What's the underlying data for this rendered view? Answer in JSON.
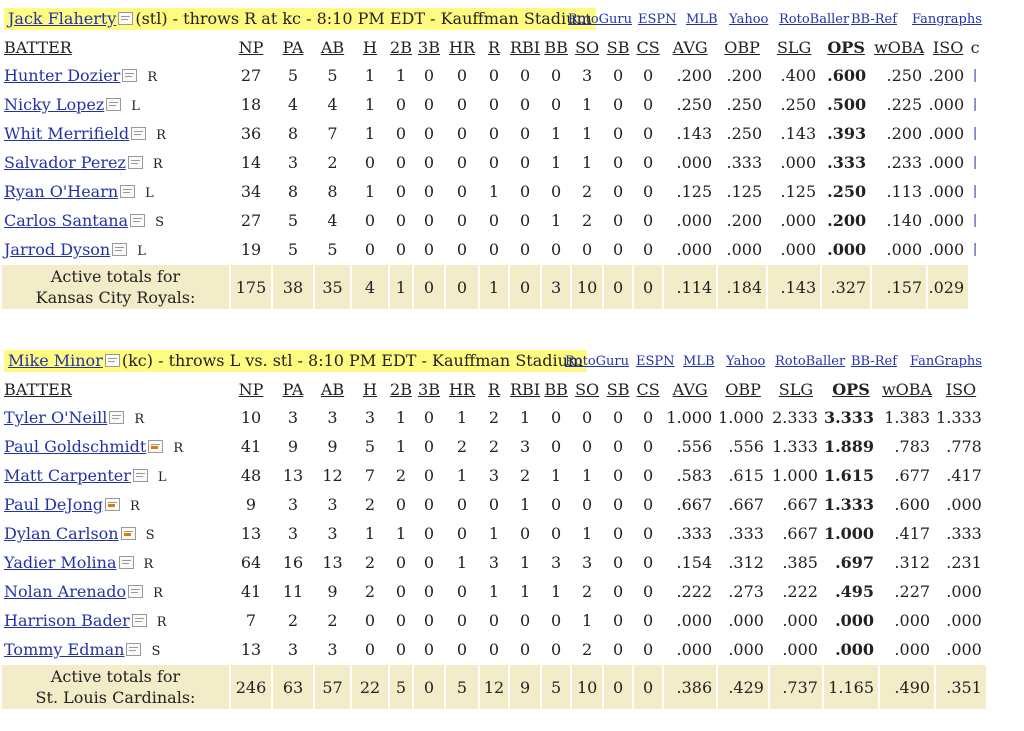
{
  "columns": [
    "BATTER",
    "NP",
    "PA",
    "AB",
    "H",
    "2B",
    "3B",
    "HR",
    "R",
    "RBI",
    "BB",
    "SO",
    "SB",
    "CS",
    "AVG",
    "OBP",
    "SLG",
    "OPS",
    "wOBA",
    "ISO"
  ],
  "games": [
    {
      "pitcher": "Jack Flaherty",
      "info": "(stl) - throws R at kc - 8:10 PM EDT - Kauffman Stadium",
      "links": [
        "RotoGuru",
        "ESPN",
        "MLB",
        "Yahoo",
        "RotoBaller",
        "BB-Ref",
        "Fangraphs"
      ],
      "extra_col": "c",
      "rows": [
        {
          "name": "Hunter Dozier",
          "hand": "R",
          "note": false,
          "stats": [
            "27",
            "5",
            "5",
            "1",
            "1",
            "0",
            "0",
            "0",
            "0",
            "0",
            "3",
            "0",
            "0",
            ".200",
            ".200",
            ".400",
            ".600",
            ".250",
            ".200"
          ],
          "extra": "|"
        },
        {
          "name": "Nicky Lopez",
          "hand": "L",
          "note": false,
          "stats": [
            "18",
            "4",
            "4",
            "1",
            "0",
            "0",
            "0",
            "0",
            "0",
            "0",
            "1",
            "0",
            "0",
            ".250",
            ".250",
            ".250",
            ".500",
            ".225",
            ".000"
          ],
          "extra": "|"
        },
        {
          "name": "Whit Merrifield",
          "hand": "R",
          "note": false,
          "stats": [
            "36",
            "8",
            "7",
            "1",
            "0",
            "0",
            "0",
            "0",
            "0",
            "1",
            "1",
            "0",
            "0",
            ".143",
            ".250",
            ".143",
            ".393",
            ".200",
            ".000"
          ],
          "extra": "|"
        },
        {
          "name": "Salvador Perez",
          "hand": "R",
          "note": false,
          "stats": [
            "14",
            "3",
            "2",
            "0",
            "0",
            "0",
            "0",
            "0",
            "0",
            "1",
            "1",
            "0",
            "0",
            ".000",
            ".333",
            ".000",
            ".333",
            ".233",
            ".000"
          ],
          "extra": "|"
        },
        {
          "name": "Ryan O'Hearn",
          "hand": "L",
          "note": false,
          "stats": [
            "34",
            "8",
            "8",
            "1",
            "0",
            "0",
            "0",
            "1",
            "0",
            "0",
            "2",
            "0",
            "0",
            ".125",
            ".125",
            ".125",
            ".250",
            ".113",
            ".000"
          ],
          "extra": "|"
        },
        {
          "name": "Carlos Santana",
          "hand": "S",
          "note": false,
          "stats": [
            "27",
            "5",
            "4",
            "0",
            "0",
            "0",
            "0",
            "0",
            "0",
            "1",
            "2",
            "0",
            "0",
            ".000",
            ".200",
            ".000",
            ".200",
            ".140",
            ".000"
          ],
          "extra": "|"
        },
        {
          "name": "Jarrod Dyson",
          "hand": "L",
          "note": false,
          "stats": [
            "19",
            "5",
            "5",
            "0",
            "0",
            "0",
            "0",
            "0",
            "0",
            "0",
            "0",
            "0",
            "0",
            ".000",
            ".000",
            ".000",
            ".000",
            ".000",
            ".000"
          ],
          "extra": "|"
        }
      ],
      "total_label": "Active totals for",
      "total_team": "Kansas City Royals:",
      "totals": [
        "175",
        "38",
        "35",
        "4",
        "1",
        "0",
        "0",
        "1",
        "0",
        "3",
        "10",
        "0",
        "0",
        ".114",
        ".184",
        ".143",
        ".327",
        ".157",
        ".029"
      ]
    },
    {
      "pitcher": "Mike Minor",
      "info": "(kc) - throws L vs. stl - 8:10 PM EDT - Kauffman Stadium",
      "links": [
        "RotoGuru",
        "ESPN",
        "MLB",
        "Yahoo",
        "RotoBaller",
        "BB-Ref",
        "FanGraphs"
      ],
      "extra_col": "",
      "rows": [
        {
          "name": "Tyler O'Neill",
          "hand": "R",
          "note": false,
          "stats": [
            "10",
            "3",
            "3",
            "3",
            "1",
            "0",
            "1",
            "2",
            "1",
            "0",
            "0",
            "0",
            "0",
            "1.000",
            "1.000",
            "2.333",
            "3.333",
            "1.383",
            "1.333"
          ],
          "extra": ""
        },
        {
          "name": "Paul Goldschmidt",
          "hand": "R",
          "note": true,
          "stats": [
            "41",
            "9",
            "9",
            "5",
            "1",
            "0",
            "2",
            "2",
            "3",
            "0",
            "0",
            "0",
            "0",
            ".556",
            ".556",
            "1.333",
            "1.889",
            ".783",
            ".778"
          ],
          "extra": ""
        },
        {
          "name": "Matt Carpenter",
          "hand": "L",
          "note": false,
          "stats": [
            "48",
            "13",
            "12",
            "7",
            "2",
            "0",
            "1",
            "3",
            "2",
            "1",
            "1",
            "0",
            "0",
            ".583",
            ".615",
            "1.000",
            "1.615",
            ".677",
            ".417"
          ],
          "extra": ""
        },
        {
          "name": "Paul DeJong",
          "hand": "R",
          "note": true,
          "stats": [
            "9",
            "3",
            "3",
            "2",
            "0",
            "0",
            "0",
            "0",
            "1",
            "0",
            "0",
            "0",
            "0",
            ".667",
            ".667",
            ".667",
            "1.333",
            ".600",
            ".000"
          ],
          "extra": ""
        },
        {
          "name": "Dylan Carlson",
          "hand": "S",
          "note": true,
          "stats": [
            "13",
            "3",
            "3",
            "1",
            "1",
            "0",
            "0",
            "1",
            "0",
            "0",
            "1",
            "0",
            "0",
            ".333",
            ".333",
            ".667",
            "1.000",
            ".417",
            ".333"
          ],
          "extra": ""
        },
        {
          "name": "Yadier Molina",
          "hand": "R",
          "note": false,
          "stats": [
            "64",
            "16",
            "13",
            "2",
            "0",
            "0",
            "1",
            "3",
            "1",
            "3",
            "3",
            "0",
            "0",
            ".154",
            ".312",
            ".385",
            ".697",
            ".312",
            ".231"
          ],
          "extra": ""
        },
        {
          "name": "Nolan Arenado",
          "hand": "R",
          "note": false,
          "stats": [
            "41",
            "11",
            "9",
            "2",
            "0",
            "0",
            "0",
            "1",
            "1",
            "1",
            "2",
            "0",
            "0",
            ".222",
            ".273",
            ".222",
            ".495",
            ".227",
            ".000"
          ],
          "extra": ""
        },
        {
          "name": "Harrison Bader",
          "hand": "R",
          "note": false,
          "stats": [
            "7",
            "2",
            "2",
            "0",
            "0",
            "0",
            "0",
            "0",
            "0",
            "0",
            "1",
            "0",
            "0",
            ".000",
            ".000",
            ".000",
            ".000",
            ".000",
            ".000"
          ],
          "extra": ""
        },
        {
          "name": "Tommy Edman",
          "hand": "S",
          "note": false,
          "stats": [
            "13",
            "3",
            "3",
            "0",
            "0",
            "0",
            "0",
            "0",
            "0",
            "0",
            "2",
            "0",
            "0",
            ".000",
            ".000",
            ".000",
            ".000",
            ".000",
            ".000"
          ],
          "extra": ""
        }
      ],
      "total_label": "Active totals for",
      "total_team": "St. Louis Cardinals:",
      "totals": [
        "246",
        "63",
        "57",
        "22",
        "5",
        "0",
        "5",
        "12",
        "9",
        "5",
        "10",
        "0",
        "0",
        ".386",
        ".429",
        ".737",
        "1.165",
        ".490",
        ".351"
      ]
    }
  ]
}
